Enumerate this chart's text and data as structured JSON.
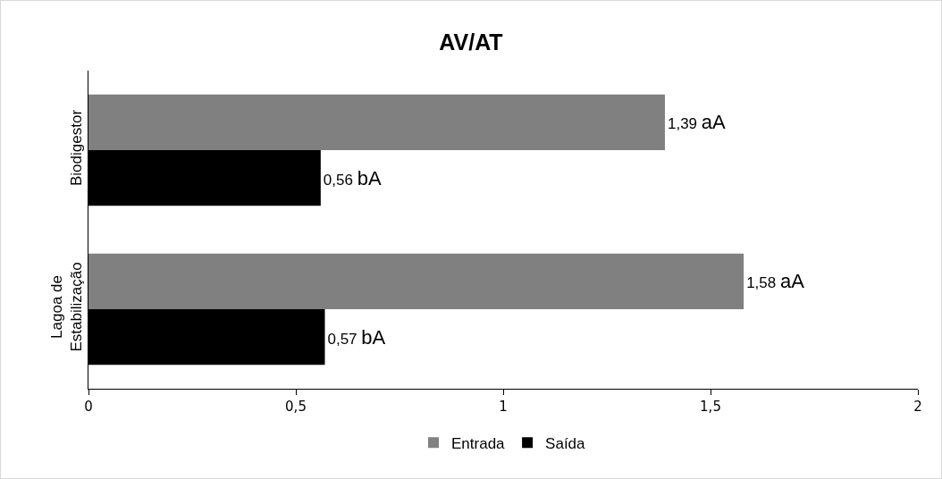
{
  "chart_data": {
    "type": "bar",
    "orientation": "horizontal",
    "title": "AV/AT",
    "categories": [
      "Biodigestor",
      "Lagoa de Estabilização"
    ],
    "series": [
      {
        "name": "Entrada",
        "color": "#808080",
        "values": [
          1.39,
          1.58
        ],
        "value_labels": [
          "1,39 aA",
          "1,58 aA"
        ]
      },
      {
        "name": "Saída",
        "color": "#000000",
        "values": [
          0.56,
          0.57
        ],
        "value_labels": [
          "0,56 bA",
          "0,57 bA"
        ]
      }
    ],
    "xlim": [
      0,
      2
    ],
    "xticks": [
      0,
      {
        "value": 0.5,
        "label": "0,5"
      },
      1,
      {
        "value": 1.5,
        "label": "1,5"
      },
      2
    ],
    "grid": false,
    "legend": "bottom"
  }
}
